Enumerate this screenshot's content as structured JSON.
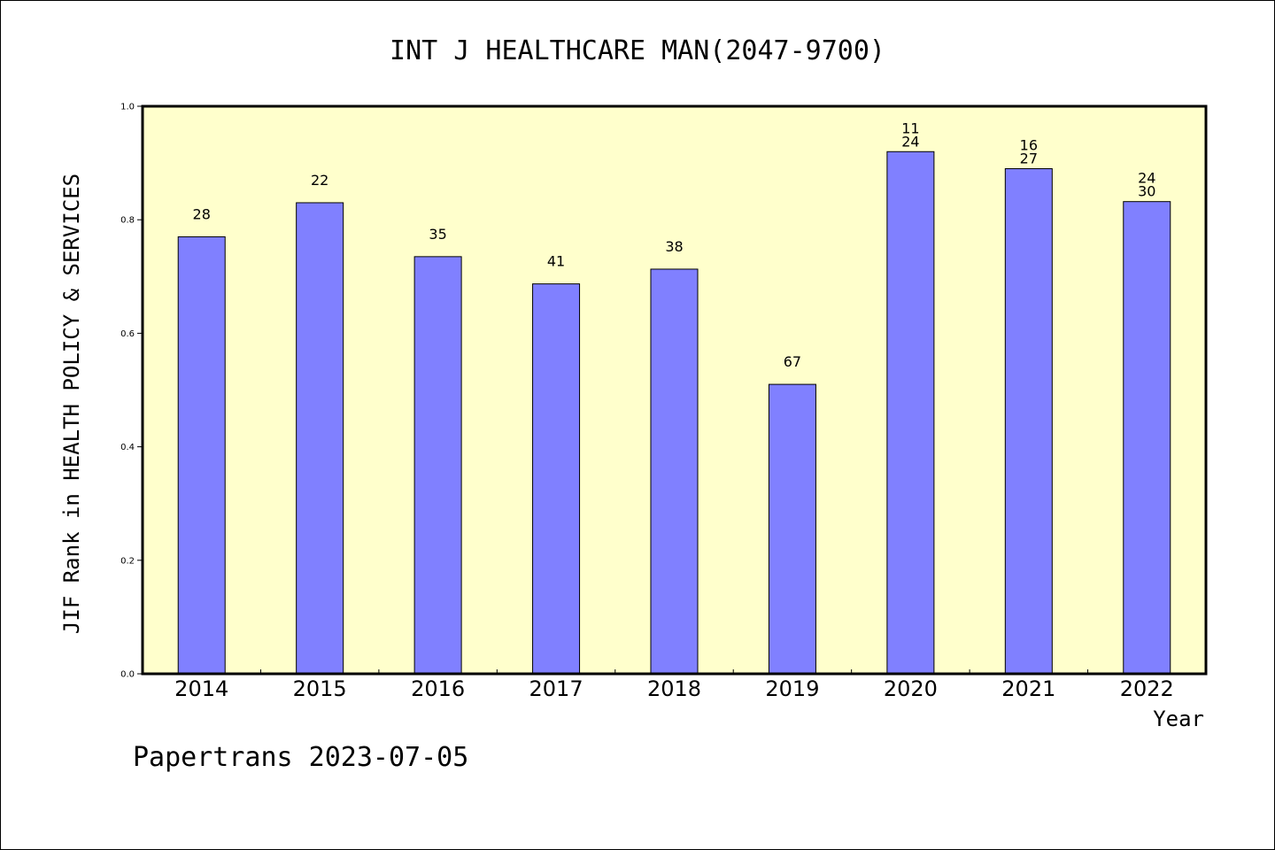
{
  "chart_data": {
    "type": "bar",
    "title": "INT J HEALTHCARE MAN(2047-9700)",
    "xlabel": "Year",
    "ylabel": "JIF Rank in HEALTH POLICY & SERVICES",
    "footer": "Papertrans 2023-07-05",
    "ylim": [
      0,
      1.0
    ],
    "yticks": [
      "0.0",
      "0.2",
      "0.4",
      "0.6",
      "0.8",
      "1.0"
    ],
    "grid": false,
    "categories": [
      "2014",
      "2015",
      "2016",
      "2017",
      "2018",
      "2019",
      "2020",
      "2021",
      "2022"
    ],
    "values": [
      0.77,
      0.83,
      0.735,
      0.687,
      0.713,
      0.51,
      0.92,
      0.89,
      0.832
    ],
    "labels": [
      [
        "28"
      ],
      [
        "22"
      ],
      [
        "35"
      ],
      [
        "41"
      ],
      [
        "38"
      ],
      [
        "67"
      ],
      [
        "11",
        "24"
      ],
      [
        "16",
        "27"
      ],
      [
        "24",
        "30"
      ]
    ],
    "colors": {
      "plot_background": "#ffffcc",
      "bar_fill": "#8080ff",
      "bar_stroke": "#000000",
      "axis": "#000000"
    }
  }
}
